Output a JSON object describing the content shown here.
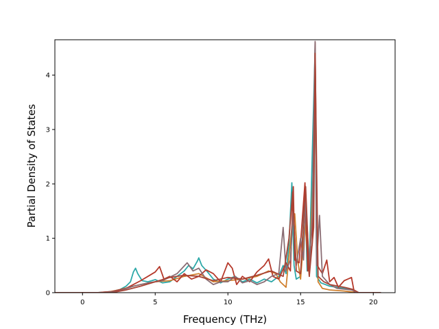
{
  "chart_data": {
    "type": "line",
    "title": "",
    "xlabel": "Frequency (THz)",
    "ylabel": "Partial Density of States",
    "xlim": [
      -1.9,
      21.5
    ],
    "ylim": [
      0,
      4.65
    ],
    "xticks": [
      0,
      5,
      10,
      15,
      20
    ],
    "yticks": [
      0,
      1,
      2,
      3,
      4
    ],
    "grid": false,
    "legend": "none",
    "series": [
      {
        "color": "#2ca8a8",
        "points": [
          [
            -1.9,
            0
          ],
          [
            1.0,
            0
          ],
          [
            2.0,
            0.02
          ],
          [
            2.6,
            0.06
          ],
          [
            3.0,
            0.12
          ],
          [
            3.3,
            0.2
          ],
          [
            3.5,
            0.38
          ],
          [
            3.65,
            0.45
          ],
          [
            3.8,
            0.35
          ],
          [
            4.1,
            0.22
          ],
          [
            4.5,
            0.2
          ],
          [
            5.0,
            0.24
          ],
          [
            5.5,
            0.18
          ],
          [
            6.0,
            0.2
          ],
          [
            6.5,
            0.3
          ],
          [
            7.0,
            0.4
          ],
          [
            7.3,
            0.5
          ],
          [
            7.6,
            0.44
          ],
          [
            7.9,
            0.58
          ],
          [
            8.0,
            0.64
          ],
          [
            8.2,
            0.5
          ],
          [
            8.6,
            0.38
          ],
          [
            9.0,
            0.25
          ],
          [
            9.5,
            0.18
          ],
          [
            10.0,
            0.25
          ],
          [
            10.5,
            0.3
          ],
          [
            11.0,
            0.2
          ],
          [
            11.5,
            0.25
          ],
          [
            12.0,
            0.18
          ],
          [
            12.5,
            0.25
          ],
          [
            13.0,
            0.2
          ],
          [
            13.5,
            0.3
          ],
          [
            13.8,
            0.5
          ],
          [
            14.0,
            0.35
          ],
          [
            14.2,
            0.9
          ],
          [
            14.4,
            2.02
          ],
          [
            14.55,
            0.5
          ],
          [
            14.7,
            0.25
          ],
          [
            15.0,
            0.3
          ],
          [
            15.3,
            1.9
          ],
          [
            15.45,
            0.4
          ],
          [
            15.6,
            0.5
          ],
          [
            16.0,
            4.5
          ],
          [
            16.1,
            0.3
          ],
          [
            16.4,
            0.18
          ],
          [
            17.0,
            0.12
          ],
          [
            18.0,
            0.08
          ],
          [
            18.6,
            0.05
          ],
          [
            19.0,
            0
          ],
          [
            20.5,
            0
          ]
        ]
      },
      {
        "color": "#d07f2c",
        "points": [
          [
            -1.9,
            0
          ],
          [
            1.5,
            0
          ],
          [
            2.5,
            0.05
          ],
          [
            3.2,
            0.1
          ],
          [
            4.0,
            0.15
          ],
          [
            5.0,
            0.2
          ],
          [
            6.0,
            0.22
          ],
          [
            7.0,
            0.3
          ],
          [
            8.0,
            0.35
          ],
          [
            9.0,
            0.2
          ],
          [
            10.0,
            0.22
          ],
          [
            11.0,
            0.25
          ],
          [
            12.0,
            0.3
          ],
          [
            12.8,
            0.4
          ],
          [
            13.3,
            0.35
          ],
          [
            13.6,
            0.2
          ],
          [
            14.0,
            0.1
          ],
          [
            14.4,
            1.2
          ],
          [
            14.6,
            1.45
          ],
          [
            14.8,
            0.6
          ],
          [
            15.0,
            0.25
          ],
          [
            15.3,
            1.3
          ],
          [
            15.6,
            0.3
          ],
          [
            16.0,
            3.2
          ],
          [
            16.2,
            0.2
          ],
          [
            16.5,
            0.08
          ],
          [
            17.0,
            0.05
          ],
          [
            18.0,
            0.03
          ],
          [
            19.0,
            0
          ],
          [
            20.5,
            0
          ]
        ]
      },
      {
        "color": "#b5382a",
        "points": [
          [
            -1.9,
            0
          ],
          [
            1.0,
            0
          ],
          [
            2.0,
            0.02
          ],
          [
            3.0,
            0.08
          ],
          [
            3.5,
            0.15
          ],
          [
            4.0,
            0.22
          ],
          [
            4.5,
            0.3
          ],
          [
            5.0,
            0.38
          ],
          [
            5.3,
            0.48
          ],
          [
            5.6,
            0.25
          ],
          [
            6.0,
            0.3
          ],
          [
            6.5,
            0.2
          ],
          [
            7.0,
            0.35
          ],
          [
            7.5,
            0.25
          ],
          [
            8.0,
            0.3
          ],
          [
            8.5,
            0.42
          ],
          [
            9.0,
            0.35
          ],
          [
            9.5,
            0.2
          ],
          [
            10.0,
            0.55
          ],
          [
            10.3,
            0.45
          ],
          [
            10.6,
            0.15
          ],
          [
            11.0,
            0.3
          ],
          [
            11.5,
            0.2
          ],
          [
            12.0,
            0.38
          ],
          [
            12.5,
            0.5
          ],
          [
            12.8,
            0.62
          ],
          [
            13.1,
            0.3
          ],
          [
            13.5,
            0.25
          ],
          [
            14.0,
            0.55
          ],
          [
            14.3,
            0.4
          ],
          [
            14.5,
            1.95
          ],
          [
            14.6,
            0.6
          ],
          [
            14.9,
            0.55
          ],
          [
            15.3,
            2.02
          ],
          [
            15.5,
            0.4
          ],
          [
            15.8,
            0.9
          ],
          [
            16.0,
            4.6
          ],
          [
            16.15,
            0.5
          ],
          [
            16.5,
            0.35
          ],
          [
            16.8,
            0.6
          ],
          [
            17.0,
            0.2
          ],
          [
            17.3,
            0.28
          ],
          [
            17.6,
            0.1
          ],
          [
            18.0,
            0.22
          ],
          [
            18.5,
            0.28
          ],
          [
            18.7,
            0
          ],
          [
            20.5,
            0
          ]
        ]
      },
      {
        "color": "#8a6d74",
        "points": [
          [
            -1.9,
            0
          ],
          [
            1.5,
            0
          ],
          [
            2.5,
            0.03
          ],
          [
            3.5,
            0.12
          ],
          [
            4.5,
            0.18
          ],
          [
            5.5,
            0.22
          ],
          [
            6.5,
            0.35
          ],
          [
            7.2,
            0.55
          ],
          [
            7.6,
            0.4
          ],
          [
            8.0,
            0.45
          ],
          [
            8.5,
            0.25
          ],
          [
            9.0,
            0.15
          ],
          [
            9.5,
            0.2
          ],
          [
            10.0,
            0.2
          ],
          [
            10.5,
            0.3
          ],
          [
            11.0,
            0.18
          ],
          [
            11.5,
            0.22
          ],
          [
            12.0,
            0.15
          ],
          [
            12.5,
            0.2
          ],
          [
            13.0,
            0.3
          ],
          [
            13.5,
            0.35
          ],
          [
            13.8,
            1.2
          ],
          [
            14.0,
            0.4
          ],
          [
            14.3,
            0.6
          ],
          [
            14.5,
            1.5
          ],
          [
            14.7,
            0.5
          ],
          [
            15.0,
            1.0
          ],
          [
            15.2,
            0.6
          ],
          [
            15.35,
            1.7
          ],
          [
            15.6,
            0.5
          ],
          [
            15.8,
            1.4
          ],
          [
            16.0,
            4.62
          ],
          [
            16.1,
            0.5
          ],
          [
            16.3,
            1.42
          ],
          [
            16.5,
            0.3
          ],
          [
            17.0,
            0.15
          ],
          [
            17.5,
            0.08
          ],
          [
            18.5,
            0.05
          ],
          [
            19.0,
            0
          ],
          [
            20.5,
            0
          ]
        ]
      },
      {
        "color": "#a84436",
        "points": [
          [
            -1.9,
            0
          ],
          [
            2.0,
            0
          ],
          [
            3.0,
            0.05
          ],
          [
            4.0,
            0.12
          ],
          [
            5.0,
            0.2
          ],
          [
            6.0,
            0.28
          ],
          [
            7.0,
            0.32
          ],
          [
            8.0,
            0.3
          ],
          [
            9.0,
            0.22
          ],
          [
            10.0,
            0.28
          ],
          [
            11.0,
            0.25
          ],
          [
            12.0,
            0.32
          ],
          [
            13.0,
            0.4
          ],
          [
            13.8,
            0.3
          ],
          [
            14.2,
            1.0
          ],
          [
            14.45,
            1.85
          ],
          [
            14.7,
            0.4
          ],
          [
            15.0,
            0.35
          ],
          [
            15.35,
            1.95
          ],
          [
            15.6,
            0.3
          ],
          [
            15.9,
            1.2
          ],
          [
            16.0,
            4.4
          ],
          [
            16.2,
            0.3
          ],
          [
            16.6,
            0.2
          ],
          [
            17.0,
            0.15
          ],
          [
            18.0,
            0.1
          ],
          [
            18.6,
            0.06
          ],
          [
            19.0,
            0
          ],
          [
            20.5,
            0
          ]
        ]
      }
    ]
  }
}
